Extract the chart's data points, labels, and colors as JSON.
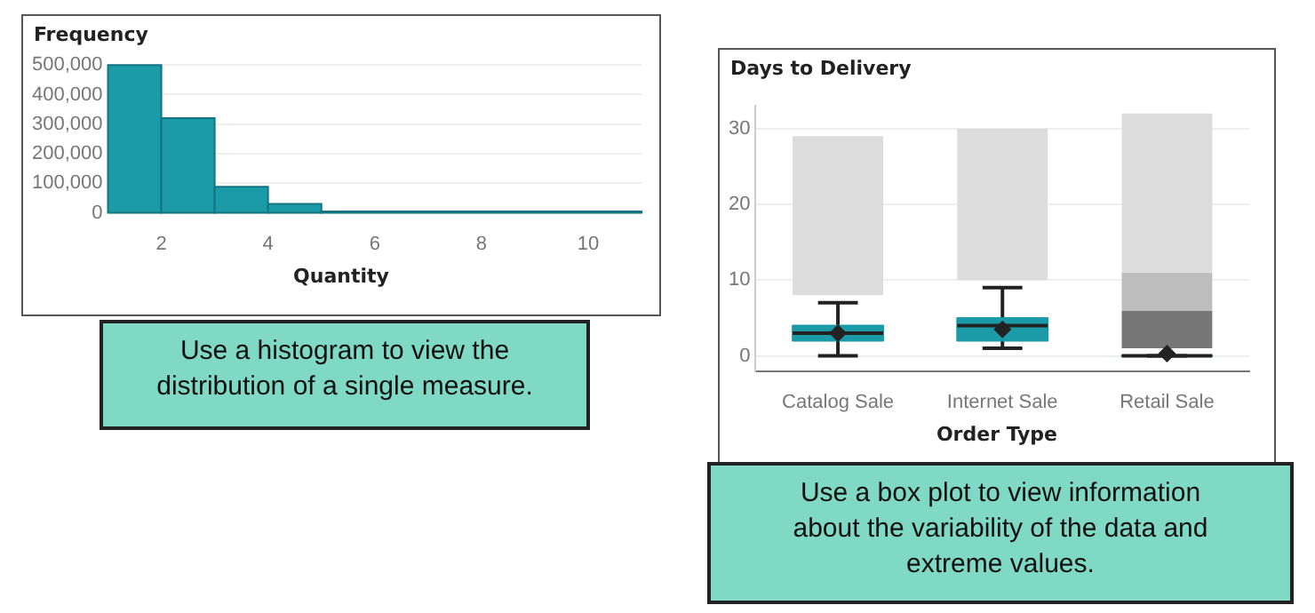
{
  "chart_data": [
    {
      "type": "histogram",
      "ylabel": "Frequency",
      "xlabel": "Quantity",
      "color": "#1b9aa8",
      "bins": [
        1,
        2,
        3,
        4,
        5,
        11
      ],
      "values": [
        500000,
        320000,
        88000,
        30000,
        5000
      ],
      "xlim": [
        1,
        11
      ],
      "xticks": [
        2,
        4,
        6,
        8,
        10
      ],
      "ylim": [
        0,
        500000
      ],
      "yticks": [
        0,
        {
          "value": 100000,
          "label": "100,000"
        },
        {
          "value": 200000,
          "label": "200,000"
        },
        {
          "value": 300000,
          "label": "300,000"
        },
        {
          "value": 400000,
          "label": "400,000"
        },
        {
          "value": 500000,
          "label": "500,000"
        }
      ],
      "grid": "y",
      "annotations": [
        "Use a histogram to view the distribution of a single measure."
      ]
    },
    {
      "type": "box",
      "ylabel": "Days to Delivery",
      "xlabel": "Order Type",
      "categories": [
        "Catalog Sale",
        "Internet Sale",
        "Retail Sale"
      ],
      "series": [
        {
          "type": "bar",
          "color": "#dcdcdc",
          "base": [
            8,
            10,
            11
          ],
          "values": [
            21,
            20,
            21
          ]
        },
        {
          "type": "bar",
          "color": "#bdbdbd",
          "base": [
            null,
            null,
            6
          ],
          "values": [
            null,
            null,
            5
          ]
        },
        {
          "type": "bar",
          "color": "#777777",
          "base": [
            null,
            null,
            1
          ],
          "values": [
            null,
            null,
            5
          ]
        },
        {
          "type": "box",
          "color": "#1b9aa8",
          "boxes": [
            {
              "low": 0,
              "q1": 2,
              "median": 3,
              "q3": 4,
              "high": 7,
              "mean": 3
            },
            {
              "low": 1,
              "q1": 2,
              "median": 4,
              "q3": 5,
              "high": 9,
              "mean": 3.5
            },
            {
              "low": 0,
              "q1": 0,
              "median": 0,
              "q3": 0,
              "high": 0,
              "mean": 0.3
            }
          ]
        }
      ],
      "ylim": [
        -2,
        33
      ],
      "yticks": [
        0,
        10,
        20,
        30
      ],
      "grid": "y",
      "annotations": [
        "Use a box plot to view information about the variability of the data and extreme values."
      ]
    }
  ]
}
